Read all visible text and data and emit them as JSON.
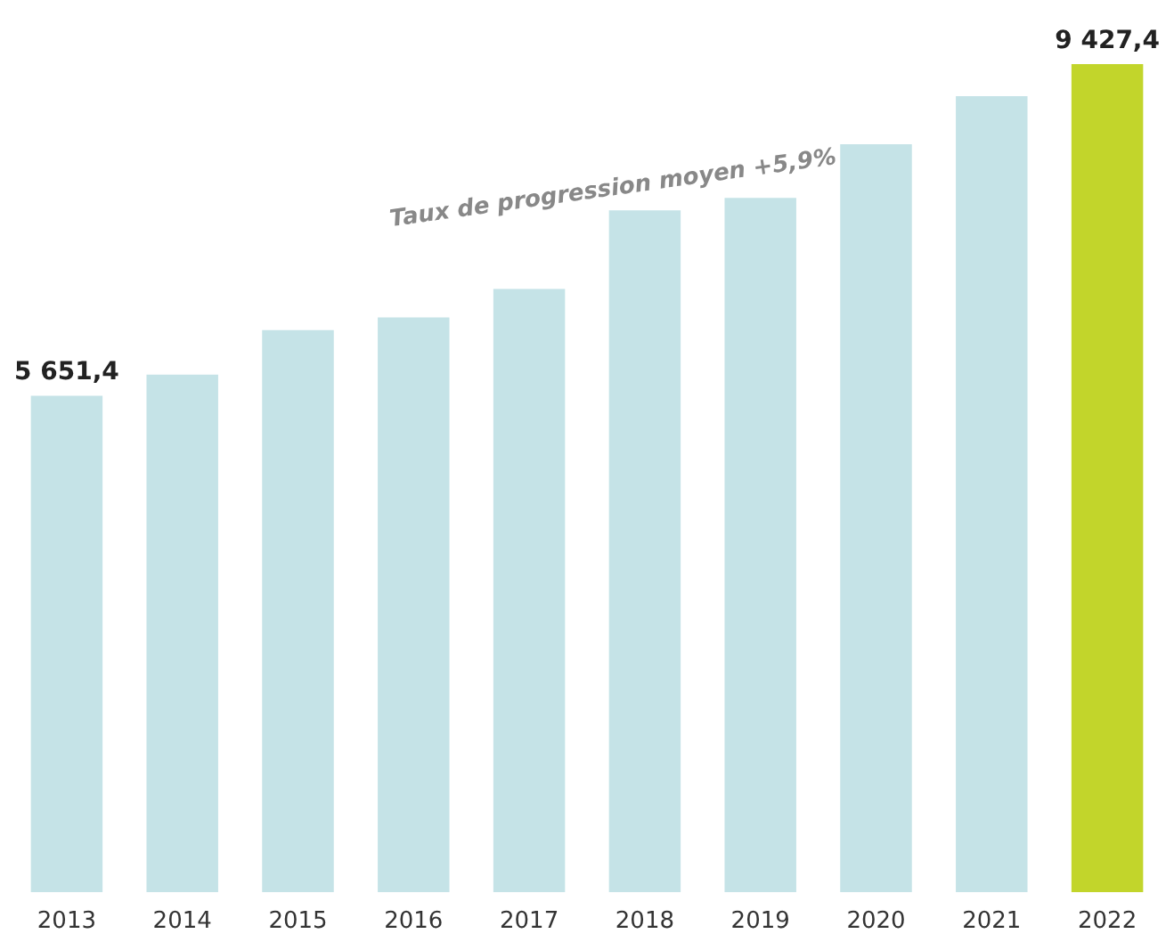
{
  "chart_data": {
    "type": "bar",
    "categories": [
      "2013",
      "2014",
      "2015",
      "2016",
      "2017",
      "2018",
      "2019",
      "2020",
      "2021",
      "2022"
    ],
    "values": [
      5651.4,
      5893,
      6400,
      6543,
      6868,
      7762,
      7904,
      8514,
      9062,
      9427.4
    ],
    "colors": [
      "#c5e3e7",
      "#c5e3e7",
      "#c5e3e7",
      "#c5e3e7",
      "#c5e3e7",
      "#c5e3e7",
      "#c5e3e7",
      "#c5e3e7",
      "#c5e3e7",
      "#c2d52b"
    ],
    "value_labels": [
      "5 651,4",
      null,
      null,
      null,
      null,
      null,
      null,
      null,
      null,
      "9 427,4"
    ],
    "annotations": [
      "Taux de progression moyen +5,9%"
    ]
  }
}
